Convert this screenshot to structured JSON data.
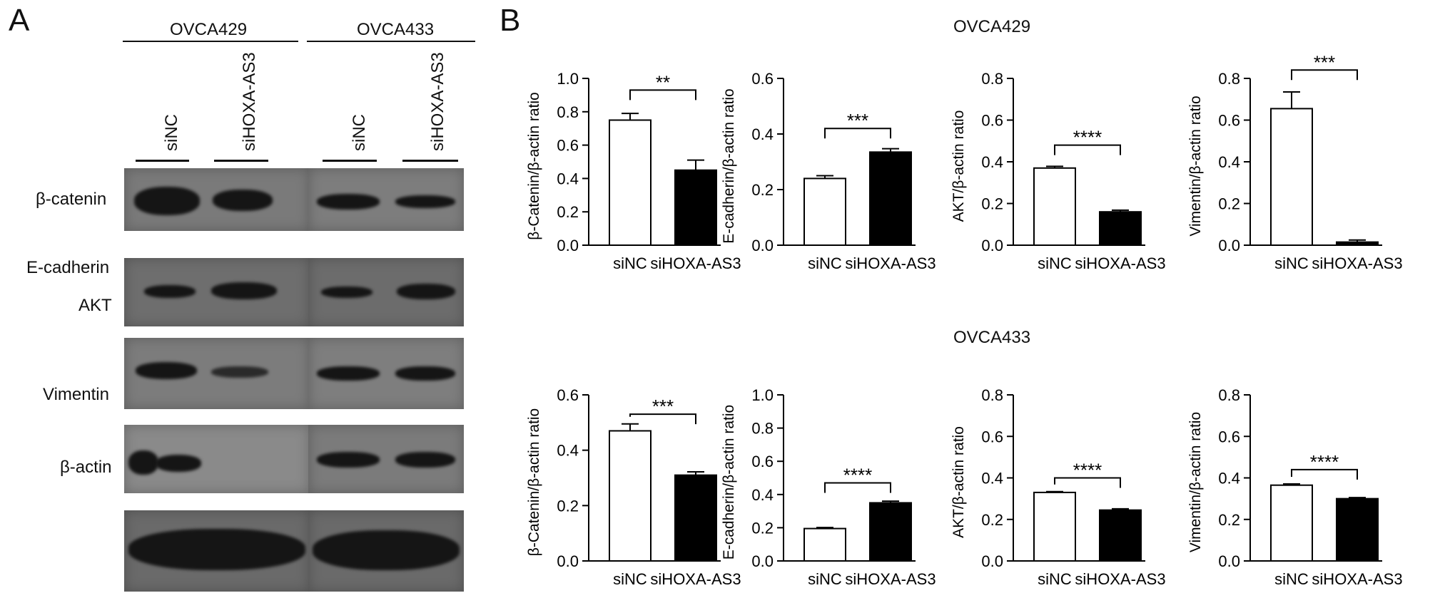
{
  "panel_a": {
    "letter": "A",
    "groups": [
      "OVCA429",
      "OVCA433"
    ],
    "lanes": [
      "siNC",
      "siHOXA-AS3",
      "siNC",
      "siHOXA-AS3"
    ],
    "proteins": [
      "β-catenin",
      "E-cadherin",
      "AKT",
      "Vimentin",
      "β-actin"
    ]
  },
  "panel_b": {
    "letter": "B",
    "row_titles": [
      "OVCA429",
      "OVCA433"
    ]
  },
  "chart_data": [
    {
      "type": "bar",
      "row": 0,
      "col": 0,
      "categories": [
        "siNC",
        "siHOXA-AS3"
      ],
      "values": [
        0.75,
        0.45
      ],
      "errors": [
        0.04,
        0.06
      ],
      "fills": [
        "#ffffff",
        "#000000"
      ],
      "ylabel": "β-Catenin/β-actin ratio",
      "ylim": [
        0,
        1.0
      ],
      "yticks": [
        "0.0",
        "0.2",
        "0.4",
        "0.6",
        "0.8",
        "1.0"
      ],
      "significance": "**",
      "sig_y": 0.93
    },
    {
      "type": "bar",
      "row": 0,
      "col": 1,
      "categories": [
        "siNC",
        "siHOXA-AS3"
      ],
      "values": [
        0.24,
        0.335
      ],
      "errors": [
        0.01,
        0.012
      ],
      "fills": [
        "#ffffff",
        "#000000"
      ],
      "ylabel": "E-cadherin/β-actin ratio",
      "ylim": [
        0,
        0.6
      ],
      "yticks": [
        "0.0",
        "0.2",
        "0.4",
        "0.6"
      ],
      "significance": "***",
      "sig_y": 0.42
    },
    {
      "type": "bar",
      "row": 0,
      "col": 2,
      "categories": [
        "siNC",
        "siHOXA-AS3"
      ],
      "values": [
        0.37,
        0.16
      ],
      "errors": [
        0.008,
        0.008
      ],
      "fills": [
        "#ffffff",
        "#000000"
      ],
      "ylabel": "AKT/β-actin ratio",
      "ylim": [
        0,
        0.8
      ],
      "yticks": [
        "0.0",
        "0.2",
        "0.4",
        "0.6",
        "0.8"
      ],
      "significance": "****",
      "sig_y": 0.48
    },
    {
      "type": "bar",
      "row": 0,
      "col": 3,
      "categories": [
        "siNC",
        "siHOXA-AS3"
      ],
      "values": [
        0.655,
        0.015
      ],
      "errors": [
        0.08,
        0.01
      ],
      "fills": [
        "#ffffff",
        "#000000"
      ],
      "ylabel": "Vimentin/β-actin ratio",
      "ylim": [
        0,
        0.8
      ],
      "yticks": [
        "0.0",
        "0.2",
        "0.4",
        "0.6",
        "0.8"
      ],
      "significance": "***",
      "sig_y": 0.84
    },
    {
      "type": "bar",
      "row": 1,
      "col": 0,
      "categories": [
        "siNC",
        "siHOXA-AS3"
      ],
      "values": [
        0.47,
        0.31
      ],
      "errors": [
        0.025,
        0.012
      ],
      "fills": [
        "#ffffff",
        "#000000"
      ],
      "ylabel": "β-Catenin/β-actin ratio",
      "ylim": [
        0,
        0.6
      ],
      "yticks": [
        "0.0",
        "0.2",
        "0.4",
        "0.6"
      ],
      "significance": "***",
      "sig_y": 0.53
    },
    {
      "type": "bar",
      "row": 1,
      "col": 1,
      "categories": [
        "siNC",
        "siHOXA-AS3"
      ],
      "values": [
        0.195,
        0.35
      ],
      "errors": [
        0.006,
        0.01
      ],
      "fills": [
        "#ffffff",
        "#000000"
      ],
      "ylabel": "E-cadherin/β-actin ratio",
      "ylim": [
        0,
        1.0
      ],
      "yticks": [
        "0.0",
        "0.2",
        "0.4",
        "0.6",
        "0.8",
        "1.0"
      ],
      "significance": "****",
      "sig_y": 0.47
    },
    {
      "type": "bar",
      "row": 1,
      "col": 2,
      "categories": [
        "siNC",
        "siHOXA-AS3"
      ],
      "values": [
        0.33,
        0.245
      ],
      "errors": [
        0.004,
        0.006
      ],
      "fills": [
        "#ffffff",
        "#000000"
      ],
      "ylabel": "AKT/β-actin ratio",
      "ylim": [
        0,
        0.8
      ],
      "yticks": [
        "0.0",
        "0.2",
        "0.4",
        "0.6",
        "0.8"
      ],
      "significance": "****",
      "sig_y": 0.4
    },
    {
      "type": "bar",
      "row": 1,
      "col": 3,
      "categories": [
        "siNC",
        "siHOXA-AS3"
      ],
      "values": [
        0.365,
        0.3
      ],
      "errors": [
        0.006,
        0.005
      ],
      "fills": [
        "#ffffff",
        "#000000"
      ],
      "ylabel": "Vimentin/β-actin ratio",
      "ylim": [
        0,
        0.8
      ],
      "yticks": [
        "0.0",
        "0.2",
        "0.4",
        "0.6",
        "0.8"
      ],
      "significance": "****",
      "sig_y": 0.44
    }
  ]
}
